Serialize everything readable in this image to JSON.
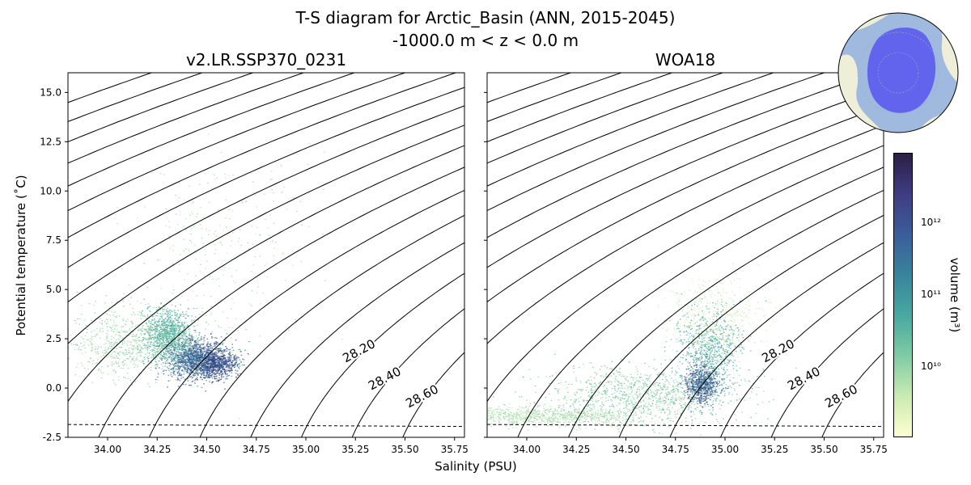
{
  "figure": {
    "title_line1": "T-S diagram for Arctic_Basin (ANN, 2015-2045)",
    "title_line2": "-1000.0 m < z < 0.0 m",
    "xlabel": "Salinity (PSU)",
    "ylabel": "Potential temperature (˚C)",
    "colorbar_label": "volume (m³)"
  },
  "chart_data": [
    {
      "type": "heatmap",
      "title": "v2.LR.SSP370_0231",
      "xlabel": "Salinity (PSU)",
      "ylabel": "Potential temperature (˚C)",
      "xlim": [
        33.8,
        35.8
      ],
      "ylim": [
        -2.5,
        16.0
      ],
      "xticks": [
        34.0,
        34.25,
        34.5,
        34.75,
        35.0,
        35.25,
        35.5,
        35.75
      ],
      "yticks": [
        -2.5,
        0.0,
        2.5,
        5.0,
        7.5,
        10.0,
        12.5,
        15.0
      ],
      "freezing_line_temperature": [
        -1.85,
        -1.95
      ],
      "density_contours": [
        "25.20",
        "25.40",
        "25.60",
        "25.80",
        "26.00",
        "26.20",
        "26.40",
        "26.60",
        "26.80",
        "27.00",
        "27.20",
        "27.40",
        "27.60",
        "27.80",
        "28.00",
        "28.20",
        "28.40",
        "28.60"
      ],
      "distribution": [
        {
          "s": 34.45,
          "t": 1.5,
          "ss": 0.08,
          "st": 0.5,
          "n": 1600,
          "level": 0.85
        },
        {
          "s": 34.3,
          "t": 2.8,
          "ss": 0.06,
          "st": 0.6,
          "n": 900,
          "level": 0.5
        },
        {
          "s": 34.15,
          "t": 2.3,
          "ss": 0.18,
          "st": 0.9,
          "n": 900,
          "level": 0.3
        },
        {
          "s": 34.55,
          "t": 1.2,
          "ss": 0.05,
          "st": 0.3,
          "n": 500,
          "level": 0.98
        },
        {
          "s": 34.6,
          "t": 7.5,
          "ss": 0.22,
          "st": 2.2,
          "n": 260,
          "level": 0.25
        }
      ]
    },
    {
      "type": "heatmap",
      "title": "WOA18",
      "xlabel": "Salinity (PSU)",
      "xlim": [
        33.8,
        35.8
      ],
      "ylim": [
        -2.5,
        16.0
      ],
      "xticks": [
        34.0,
        34.25,
        34.5,
        34.75,
        35.0,
        35.25,
        35.5,
        35.75
      ],
      "yticks": [
        -2.5,
        0.0,
        2.5,
        5.0,
        7.5,
        10.0,
        12.5,
        15.0
      ],
      "freezing_line_temperature": [
        -1.85,
        -1.95
      ],
      "density_contours": [
        "25.20",
        "25.40",
        "25.60",
        "25.80",
        "26.00",
        "26.20",
        "26.40",
        "26.60",
        "26.80",
        "27.00",
        "27.20",
        "27.40",
        "27.60",
        "27.80",
        "28.00",
        "28.20",
        "28.40",
        "28.60"
      ],
      "distribution": [
        {
          "s": 34.1,
          "t": -1.4,
          "ss": 0.25,
          "st": 0.25,
          "n": 900,
          "level": 0.25
        },
        {
          "s": 34.6,
          "t": -0.3,
          "ss": 0.25,
          "st": 0.7,
          "n": 1100,
          "level": 0.35
        },
        {
          "s": 34.88,
          "t": 0.2,
          "ss": 0.04,
          "st": 0.5,
          "n": 700,
          "level": 0.9
        },
        {
          "s": 34.92,
          "t": 2.0,
          "ss": 0.08,
          "st": 1.0,
          "n": 700,
          "level": 0.5
        },
        {
          "s": 34.95,
          "t": 3.5,
          "ss": 0.12,
          "st": 1.0,
          "n": 500,
          "level": 0.15
        }
      ]
    }
  ],
  "colorbar": {
    "scale": "log",
    "tick_labels": [
      "10¹⁰",
      "10¹¹",
      "10¹²"
    ],
    "colors": [
      "#fffed0",
      "#c9ebb2",
      "#7fcba4",
      "#48a8a0",
      "#38849c",
      "#3b5d99",
      "#3f3c82",
      "#2c1f44"
    ]
  },
  "inset_map": {
    "ocean_color": "#9fb9df",
    "land_color": "#eeeed9",
    "region_color": "#5b5bf0"
  }
}
